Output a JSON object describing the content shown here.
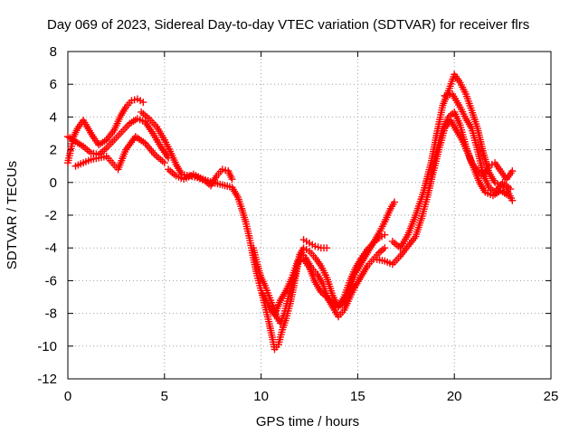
{
  "chart_data": {
    "type": "scatter",
    "title": "Day 069 of 2023, Sidereal Day-to-day VTEC variation (SDTVAR) for receiver flrs",
    "xlabel": "GPS time / hours",
    "ylabel": "SDTVAR / TECUs",
    "xlim": [
      0,
      25
    ],
    "ylim": [
      -12,
      8
    ],
    "xticks": [
      0,
      5,
      10,
      15,
      20,
      25
    ],
    "yticks": [
      -12,
      -10,
      -8,
      -6,
      -4,
      -2,
      0,
      2,
      4,
      6,
      8
    ],
    "grid": true,
    "marker": "+",
    "series_color": "#ff0000",
    "series": [
      {
        "name": "satellite-track-group",
        "points": [
          [
            0.0,
            1.2
          ],
          [
            0.3,
            2.8
          ],
          [
            0.5,
            3.3
          ],
          [
            0.8,
            3.8
          ],
          [
            1.0,
            3.4
          ],
          [
            1.3,
            2.8
          ],
          [
            1.6,
            2.3
          ],
          [
            2.0,
            2.6
          ],
          [
            2.4,
            3.2
          ],
          [
            2.7,
            4.0
          ],
          [
            3.0,
            4.6
          ],
          [
            3.3,
            5.0
          ],
          [
            3.6,
            5.1
          ],
          [
            3.9,
            4.9
          ],
          [
            0.0,
            2.8
          ],
          [
            0.4,
            2.5
          ],
          [
            0.8,
            2.2
          ],
          [
            1.2,
            1.8
          ],
          [
            1.6,
            1.7
          ],
          [
            2.0,
            2.1
          ],
          [
            2.4,
            2.6
          ],
          [
            2.8,
            3.1
          ],
          [
            3.2,
            3.6
          ],
          [
            3.6,
            3.9
          ],
          [
            4.0,
            3.7
          ],
          [
            4.4,
            3.0
          ],
          [
            4.8,
            2.2
          ],
          [
            5.2,
            1.5
          ],
          [
            0.4,
            1.0
          ],
          [
            0.8,
            1.2
          ],
          [
            1.2,
            1.4
          ],
          [
            1.6,
            1.5
          ],
          [
            2.0,
            1.6
          ],
          [
            2.3,
            1.2
          ],
          [
            2.6,
            0.8
          ],
          [
            3.0,
            2.0
          ],
          [
            3.5,
            2.8
          ],
          [
            4.0,
            2.4
          ],
          [
            4.5,
            1.7
          ],
          [
            5.0,
            1.2
          ],
          [
            3.8,
            4.3
          ],
          [
            4.2,
            3.9
          ],
          [
            4.6,
            3.4
          ],
          [
            5.0,
            2.6
          ],
          [
            5.3,
            1.9
          ],
          [
            5.6,
            1.1
          ],
          [
            5.9,
            0.5
          ],
          [
            6.3,
            0.4
          ],
          [
            6.7,
            0.3
          ],
          [
            7.1,
            0.1
          ],
          [
            7.4,
            -0.2
          ],
          [
            7.7,
            0.4
          ],
          [
            8.0,
            0.8
          ],
          [
            8.3,
            0.7
          ],
          [
            8.5,
            0.2
          ],
          [
            5.2,
            0.8
          ],
          [
            5.6,
            0.4
          ],
          [
            6.0,
            0.2
          ],
          [
            6.5,
            0.5
          ],
          [
            7.0,
            0.2
          ],
          [
            7.5,
            0.0
          ],
          [
            8.5,
            -0.3
          ],
          [
            8.8,
            -0.9
          ],
          [
            9.0,
            -1.6
          ],
          [
            9.2,
            -2.4
          ],
          [
            9.4,
            -3.4
          ],
          [
            9.6,
            -4.6
          ],
          [
            9.8,
            -5.7
          ],
          [
            10.0,
            -6.6
          ],
          [
            10.2,
            -7.5
          ],
          [
            10.4,
            -8.5
          ],
          [
            10.6,
            -9.6
          ],
          [
            10.7,
            -10.2
          ],
          [
            10.9,
            -9.9
          ],
          [
            11.1,
            -9.0
          ],
          [
            11.3,
            -8.3
          ],
          [
            11.5,
            -7.4
          ],
          [
            11.7,
            -6.3
          ],
          [
            11.9,
            -5.0
          ],
          [
            12.1,
            -4.3
          ],
          [
            12.3,
            -4.6
          ],
          [
            12.6,
            -5.2
          ],
          [
            12.9,
            -5.6
          ],
          [
            13.2,
            -6.2
          ],
          [
            13.5,
            -7.2
          ],
          [
            13.8,
            -7.8
          ],
          [
            14.0,
            -8.2
          ],
          [
            14.3,
            -7.8
          ],
          [
            14.6,
            -7.0
          ],
          [
            14.9,
            -6.3
          ],
          [
            15.2,
            -5.7
          ],
          [
            15.5,
            -5.1
          ],
          [
            15.8,
            -4.7
          ],
          [
            16.1,
            -4.3
          ],
          [
            16.4,
            -4.0
          ],
          [
            9.6,
            -4.0
          ],
          [
            9.8,
            -5.0
          ],
          [
            10.0,
            -5.8
          ],
          [
            10.2,
            -6.3
          ],
          [
            10.4,
            -6.9
          ],
          [
            10.6,
            -7.5
          ],
          [
            10.8,
            -8.2
          ],
          [
            11.0,
            -8.6
          ],
          [
            11.2,
            -8.0
          ],
          [
            11.4,
            -7.1
          ],
          [
            11.6,
            -6.2
          ],
          [
            11.8,
            -5.4
          ],
          [
            12.0,
            -4.4
          ],
          [
            12.2,
            -4.0
          ],
          [
            12.5,
            -4.2
          ],
          [
            12.8,
            -4.6
          ],
          [
            13.1,
            -5.1
          ],
          [
            13.4,
            -5.8
          ],
          [
            13.7,
            -6.9
          ],
          [
            14.0,
            -7.6
          ],
          [
            14.3,
            -7.3
          ],
          [
            14.6,
            -6.5
          ],
          [
            14.9,
            -5.5
          ],
          [
            15.2,
            -4.9
          ],
          [
            15.5,
            -4.3
          ],
          [
            15.8,
            -3.7
          ],
          [
            16.1,
            -3.1
          ],
          [
            16.4,
            -2.4
          ],
          [
            16.7,
            -1.6
          ],
          [
            16.9,
            -1.2
          ],
          [
            10.1,
            -6.8
          ],
          [
            10.4,
            -7.5
          ],
          [
            10.7,
            -8.1
          ],
          [
            11.0,
            -7.2
          ],
          [
            11.3,
            -6.6
          ],
          [
            11.6,
            -5.8
          ],
          [
            11.9,
            -4.8
          ],
          [
            12.2,
            -4.7
          ],
          [
            12.5,
            -5.2
          ],
          [
            12.8,
            -6.1
          ],
          [
            13.1,
            -6.7
          ],
          [
            13.4,
            -7.0
          ],
          [
            13.7,
            -7.4
          ],
          [
            14.0,
            -7.6
          ],
          [
            14.3,
            -7.0
          ],
          [
            14.6,
            -6.0
          ],
          [
            14.9,
            -5.2
          ],
          [
            15.2,
            -4.6
          ],
          [
            15.5,
            -4.1
          ],
          [
            15.8,
            -3.7
          ],
          [
            16.1,
            -3.4
          ],
          [
            16.4,
            -3.2
          ],
          [
            12.2,
            -3.5
          ],
          [
            12.5,
            -3.7
          ],
          [
            12.8,
            -3.9
          ],
          [
            13.1,
            -4.0
          ],
          [
            13.4,
            -4.0
          ],
          [
            16.0,
            -4.7
          ],
          [
            16.4,
            -4.8
          ],
          [
            16.8,
            -5.0
          ],
          [
            17.2,
            -4.5
          ],
          [
            17.6,
            -3.9
          ],
          [
            18.0,
            -3.3
          ],
          [
            18.3,
            -2.2
          ],
          [
            18.6,
            -0.9
          ],
          [
            18.9,
            0.6
          ],
          [
            19.2,
            2.0
          ],
          [
            19.5,
            3.3
          ],
          [
            19.8,
            3.8
          ],
          [
            20.1,
            3.2
          ],
          [
            20.4,
            2.6
          ],
          [
            20.7,
            1.8
          ],
          [
            21.0,
            0.9
          ],
          [
            21.3,
            0.0
          ],
          [
            21.6,
            -0.6
          ],
          [
            22.0,
            -0.8
          ],
          [
            22.4,
            -0.5
          ],
          [
            22.8,
            -0.8
          ],
          [
            16.8,
            -3.6
          ],
          [
            17.2,
            -4.0
          ],
          [
            17.6,
            -3.2
          ],
          [
            18.0,
            -2.0
          ],
          [
            18.4,
            -0.6
          ],
          [
            18.8,
            1.2
          ],
          [
            19.1,
            3.0
          ],
          [
            19.4,
            4.7
          ],
          [
            19.7,
            5.6
          ],
          [
            20.0,
            6.6
          ],
          [
            20.3,
            6.1
          ],
          [
            20.6,
            5.4
          ],
          [
            20.9,
            4.4
          ],
          [
            21.2,
            3.3
          ],
          [
            21.5,
            1.8
          ],
          [
            21.8,
            0.6
          ],
          [
            22.1,
            0.0
          ],
          [
            22.4,
            -0.2
          ],
          [
            22.7,
            -0.4
          ],
          [
            23.0,
            -1.1
          ],
          [
            18.8,
            0.5
          ],
          [
            19.1,
            2.0
          ],
          [
            19.4,
            3.3
          ],
          [
            19.7,
            4.0
          ],
          [
            20.0,
            4.3
          ],
          [
            20.3,
            3.5
          ],
          [
            20.6,
            2.2
          ],
          [
            20.9,
            1.2
          ],
          [
            21.2,
            0.7
          ],
          [
            21.5,
            0.4
          ],
          [
            21.8,
            1.0
          ],
          [
            22.1,
            1.2
          ],
          [
            22.4,
            0.7
          ],
          [
            22.7,
            0.2
          ],
          [
            23.0,
            0.7
          ],
          [
            19.5,
            5.3
          ],
          [
            19.9,
            5.4
          ],
          [
            20.3,
            4.6
          ],
          [
            20.6,
            3.9
          ],
          [
            20.9,
            3.3
          ],
          [
            21.2,
            2.0
          ],
          [
            21.5,
            0.5
          ],
          [
            21.8,
            -0.3
          ],
          [
            22.1,
            -0.6
          ],
          [
            22.5,
            0.0
          ],
          [
            22.9,
            -0.4
          ]
        ]
      }
    ]
  }
}
